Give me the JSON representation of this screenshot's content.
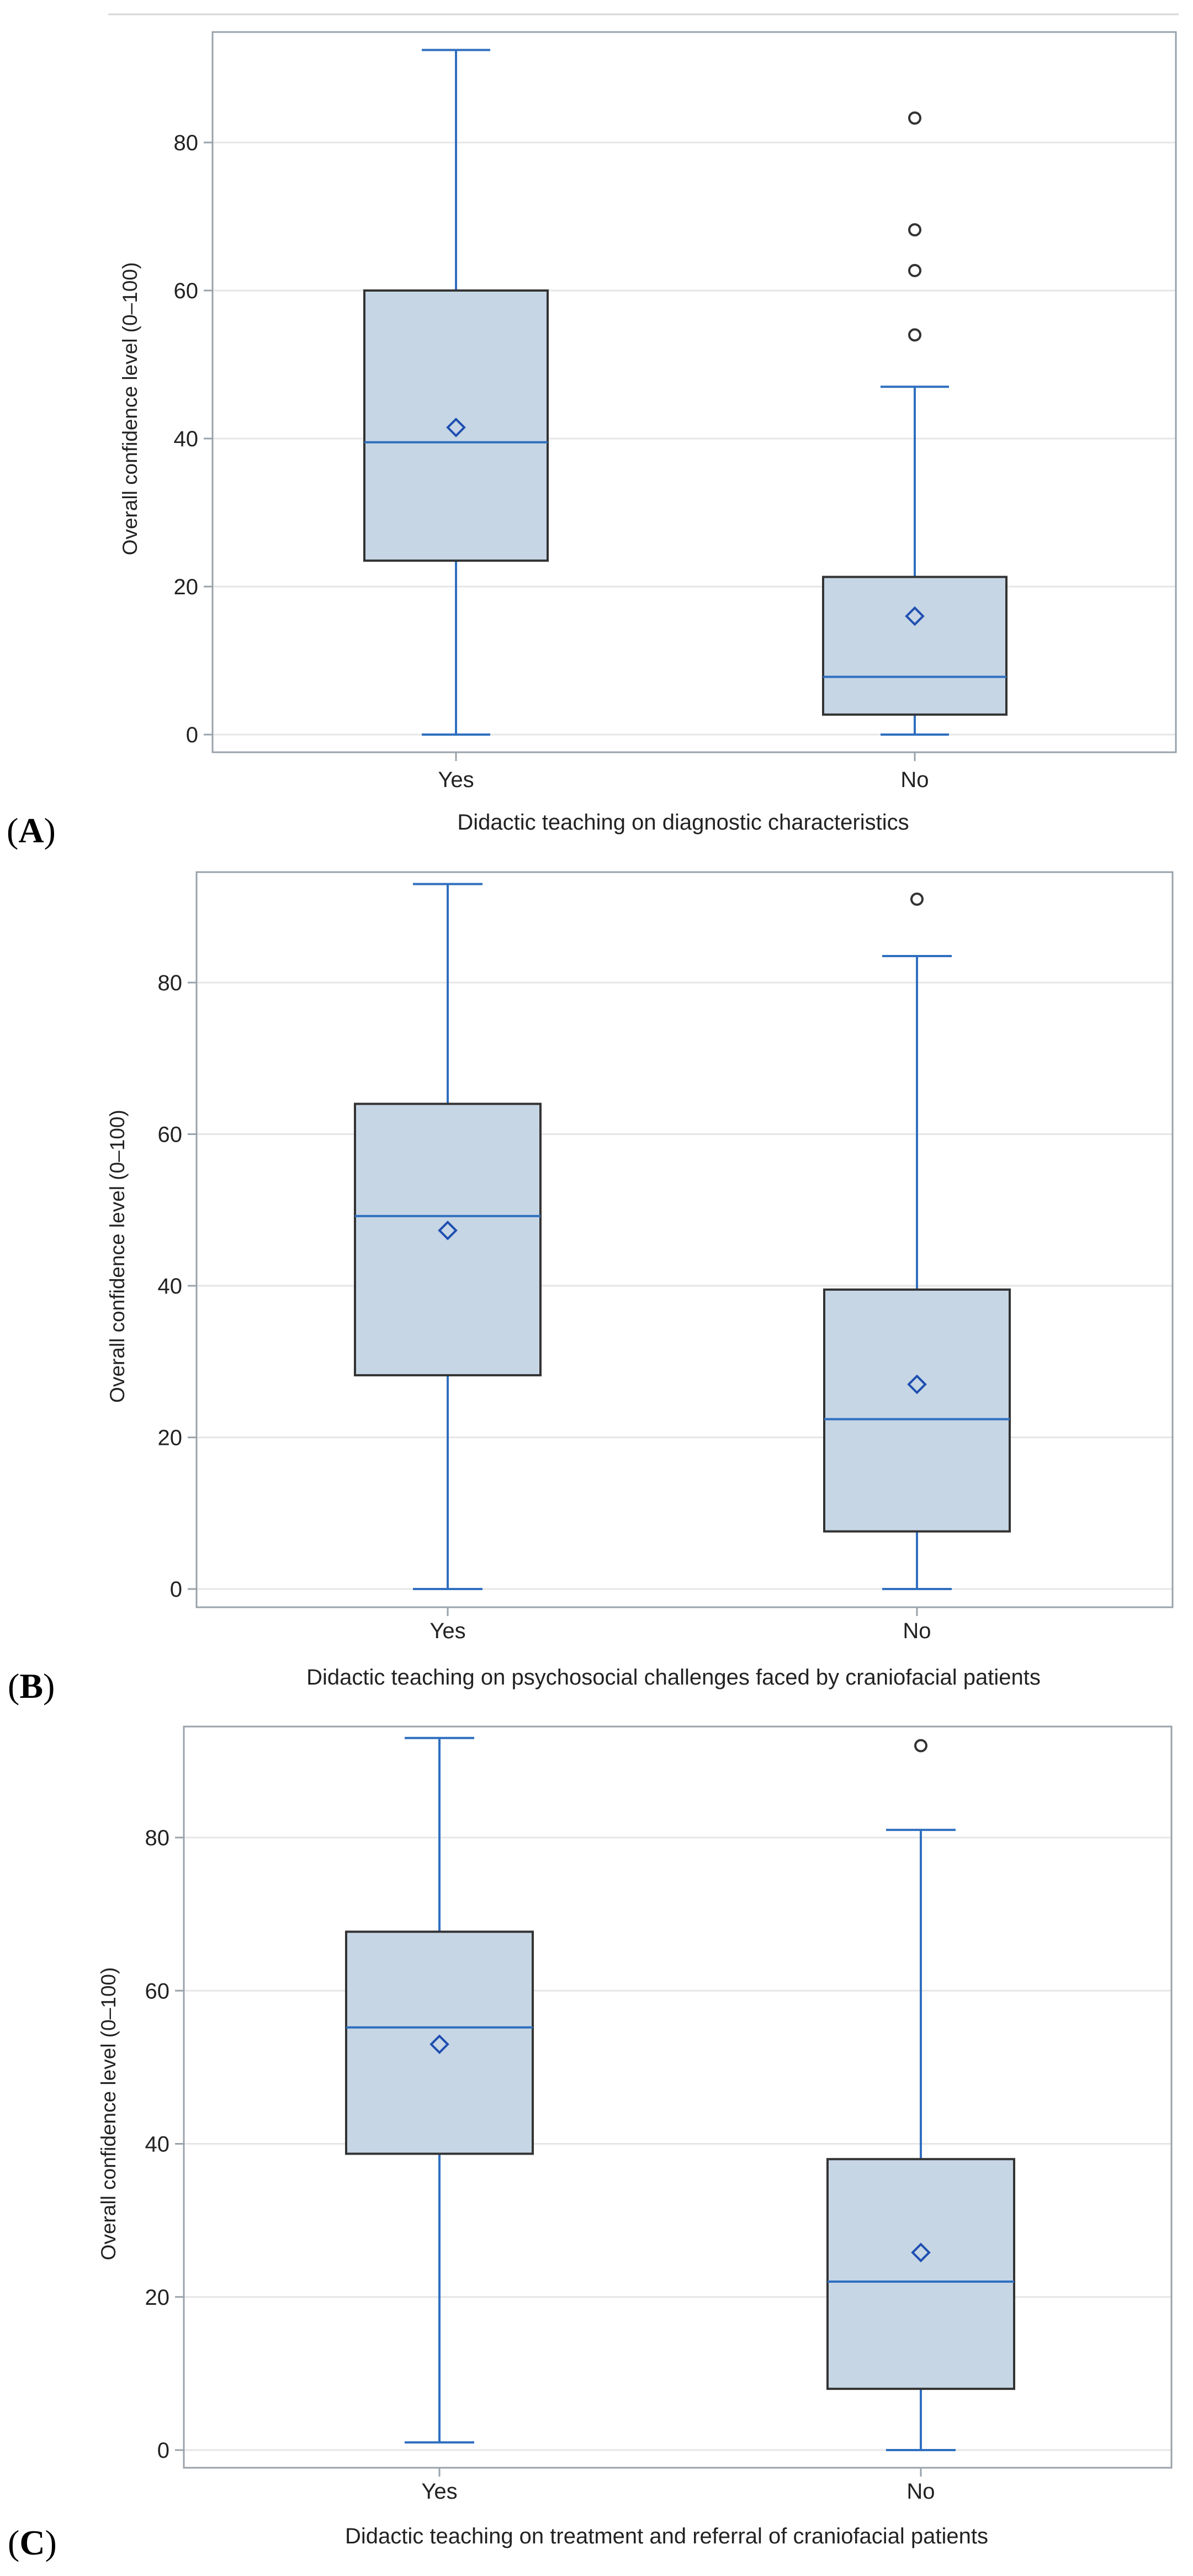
{
  "colors": {
    "box_fill": "#c6d6e5",
    "box_edge": "#333333",
    "whisker": "#2f6fbf",
    "median": "#2f6fbf",
    "mean_marker": "#1f4fb0",
    "outlier": "#333333",
    "grid": "#e6e6e6",
    "frame": "#9aa3ab"
  },
  "chart_data": [
    {
      "type": "box",
      "panel_label": "A",
      "ylabel": "Overall confidence level (0–100)",
      "xlabel": "Didactic teaching on diagnostic characteristics",
      "ylim": [
        -2,
        93
      ],
      "yticks": [
        "0",
        "20",
        "40",
        "60",
        "80"
      ],
      "grid": true,
      "categories": [
        "Yes",
        "No"
      ],
      "boxes": [
        {
          "category": "Yes",
          "min": 0,
          "q1": 23.5,
          "median": 39.5,
          "q3": 60,
          "max": 92.5,
          "mean": 41.5,
          "outliers": []
        },
        {
          "category": "No",
          "min": 0,
          "q1": 2.7,
          "median": 7.8,
          "q3": 21.3,
          "max": 47,
          "mean": 16,
          "outliers": [
            54,
            62.7,
            68.2,
            83.3
          ]
        }
      ]
    },
    {
      "type": "box",
      "panel_label": "B",
      "ylabel": "Overall confidence level (0–100)",
      "xlabel": "Didactic teaching on psychosocial challenges faced by craniofacial patients",
      "ylim": [
        -2,
        95
      ],
      "yticks": [
        "0",
        "20",
        "40",
        "60",
        "80"
      ],
      "grid": true,
      "categories": [
        "Yes",
        "No"
      ],
      "boxes": [
        {
          "category": "Yes",
          "min": 0,
          "q1": 28.2,
          "median": 49.2,
          "q3": 64,
          "max": 93,
          "mean": 47.3,
          "outliers": []
        },
        {
          "category": "No",
          "min": 0,
          "q1": 7.6,
          "median": 22.4,
          "q3": 39.5,
          "max": 83.5,
          "mean": 27,
          "outliers": [
            91
          ]
        }
      ]
    },
    {
      "type": "box",
      "panel_label": "C",
      "ylabel": "Overall confidence level (0–100)",
      "xlabel": "Didactic teaching on treatment and referral of craniofacial patients",
      "ylim": [
        -2,
        95
      ],
      "yticks": [
        "0",
        "20",
        "40",
        "60",
        "80"
      ],
      "grid": true,
      "categories": [
        "Yes",
        "No"
      ],
      "boxes": [
        {
          "category": "Yes",
          "min": 1,
          "q1": 38.7,
          "median": 55.2,
          "q3": 67.7,
          "max": 93,
          "mean": 53,
          "outliers": []
        },
        {
          "category": "No",
          "min": 0,
          "q1": 8,
          "median": 22,
          "q3": 38,
          "max": 81,
          "mean": 25.8,
          "outliers": [
            92
          ]
        }
      ]
    }
  ]
}
